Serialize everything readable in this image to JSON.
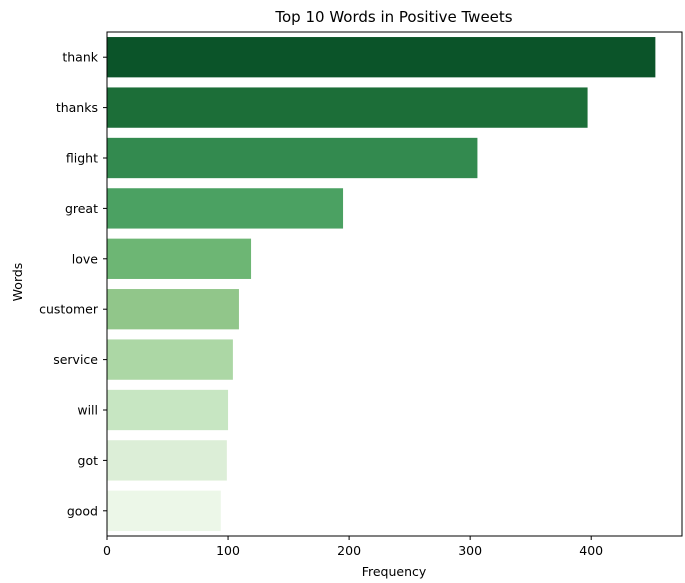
{
  "chart_data": {
    "type": "bar",
    "orientation": "horizontal",
    "title": "Top 10 Words in Positive Tweets",
    "xlabel": "Frequency",
    "ylabel": "Words",
    "categories": [
      "thank",
      "thanks",
      "flight",
      "great",
      "love",
      "customer",
      "service",
      "will",
      "got",
      "good"
    ],
    "values": [
      453,
      397,
      306,
      195,
      119,
      109,
      104,
      100,
      99,
      94
    ],
    "xlim": [
      0,
      475
    ],
    "xticks": [
      0,
      100,
      200,
      300,
      400
    ],
    "grid": false,
    "colors": [
      "#0b5429",
      "#1c6e38",
      "#338a4f",
      "#4ba162",
      "#6db674",
      "#91c68a",
      "#acd7a5",
      "#c7e6c2",
      "#dceed7",
      "#ecf7e8"
    ]
  }
}
